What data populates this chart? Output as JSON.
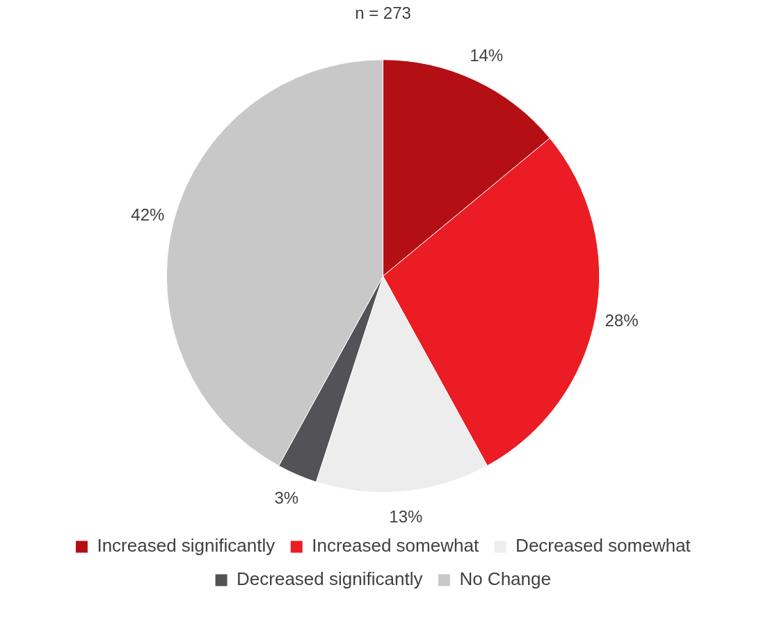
{
  "chart_data": {
    "type": "pie",
    "title": "n = 273",
    "categories": [
      "Increased significantly",
      "Increased somewhat",
      "Decreased somewhat",
      "Decreased significantly",
      "No Change"
    ],
    "values": [
      14,
      28,
      13,
      3,
      42
    ],
    "colors": [
      "#b50f16",
      "#ec1c24",
      "#ededed",
      "#535257",
      "#c8c8c8"
    ],
    "value_labels": [
      "14%",
      "28%",
      "13%",
      "3%",
      "42%"
    ],
    "legend": "bottom"
  }
}
